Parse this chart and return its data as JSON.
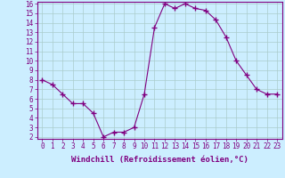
{
  "x": [
    0,
    1,
    2,
    3,
    4,
    5,
    6,
    7,
    8,
    9,
    10,
    11,
    12,
    13,
    14,
    15,
    16,
    17,
    18,
    19,
    20,
    21,
    22,
    23
  ],
  "y": [
    8.0,
    7.5,
    6.5,
    5.5,
    5.5,
    4.5,
    2.0,
    2.5,
    2.5,
    3.0,
    6.5,
    13.5,
    16.0,
    15.5,
    16.0,
    15.5,
    15.3,
    14.3,
    12.5,
    10.0,
    8.5,
    7.0,
    6.5,
    6.5
  ],
  "line_color": "#800080",
  "marker": "+",
  "marker_size": 4,
  "bg_color": "#cceeff",
  "grid_color": "#aacccc",
  "xlabel": "Windchill (Refroidissement éolien,°C)",
  "ylim": [
    2,
    16
  ],
  "xlim": [
    -0.5,
    23.5
  ],
  "yticks": [
    2,
    3,
    4,
    5,
    6,
    7,
    8,
    9,
    10,
    11,
    12,
    13,
    14,
    15,
    16
  ],
  "xticks": [
    0,
    1,
    2,
    3,
    4,
    5,
    6,
    7,
    8,
    9,
    10,
    11,
    12,
    13,
    14,
    15,
    16,
    17,
    18,
    19,
    20,
    21,
    22,
    23
  ],
  "tick_fontsize": 5.5,
  "xlabel_fontsize": 6.5,
  "axis_color": "#800080"
}
